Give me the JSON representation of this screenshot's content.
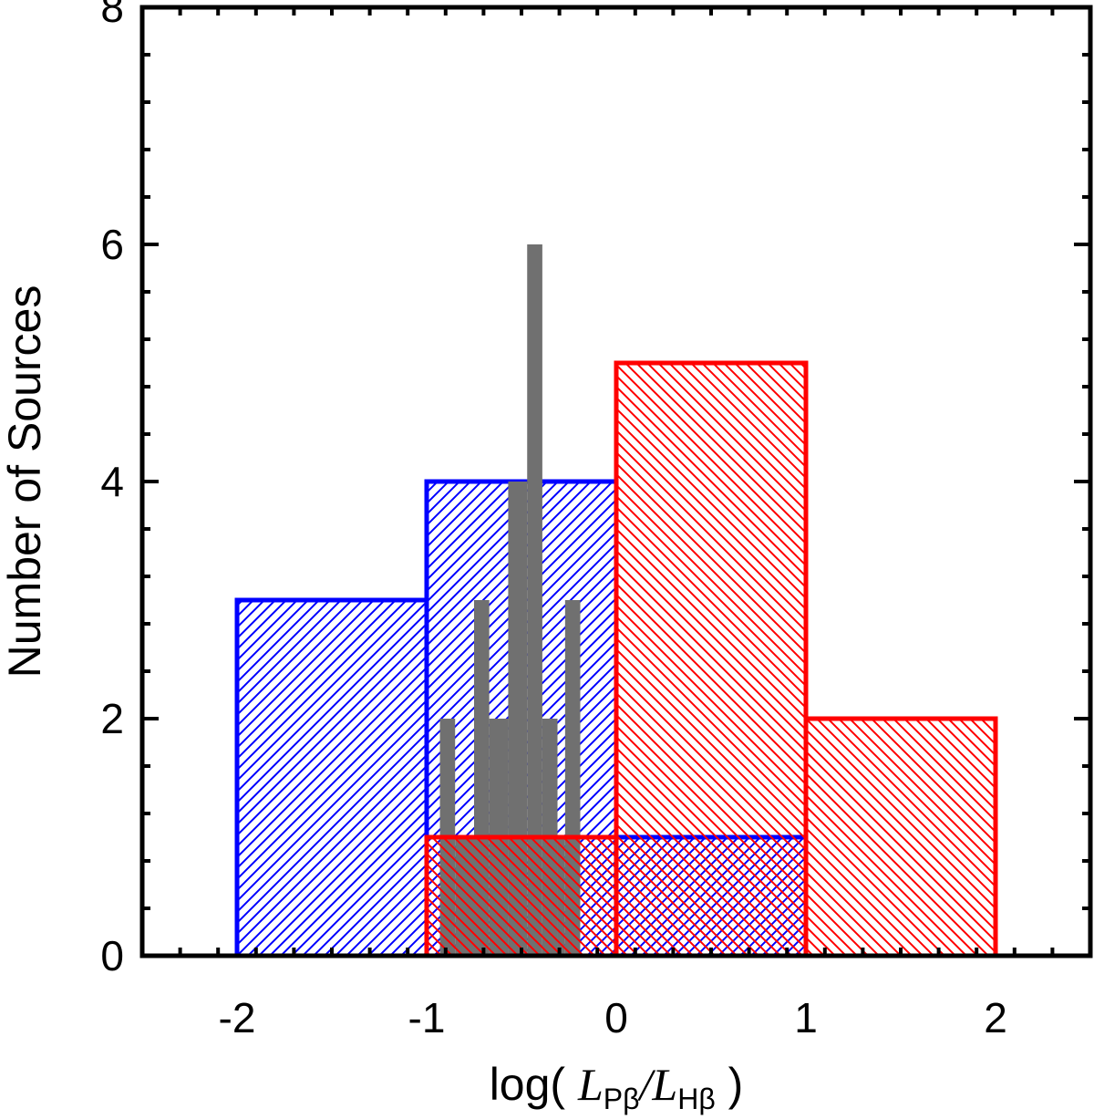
{
  "chart_data": {
    "type": "bar",
    "title": "",
    "ylabel": "Number of Sources",
    "xlabel": {
      "prefix": "log( ",
      "num_symbol": "L",
      "num_sub": "Pβ",
      "slash": "/",
      "den_symbol": "L",
      "den_sub": "Hβ",
      "suffix": " )"
    },
    "xlim": [
      -2.5,
      2.5
    ],
    "ylim": [
      0,
      8
    ],
    "x_ticks": [
      -2,
      -1,
      0,
      1,
      2
    ],
    "x_tick_labels": [
      "-2",
      "-1",
      "0",
      "1",
      "2"
    ],
    "y_ticks": [
      0,
      2,
      4,
      6,
      8
    ],
    "y_tick_labels": [
      "0",
      "2",
      "4",
      "6",
      "8"
    ],
    "grid": false,
    "series": [
      {
        "style": "hatch-forward",
        "color": "#0000ff",
        "bins": [
          {
            "x0": -2,
            "x1": -1,
            "value": 3
          },
          {
            "x0": -1,
            "x1": 0,
            "value": 4
          },
          {
            "x0": 0,
            "x1": 1,
            "value": 1
          }
        ]
      },
      {
        "style": "hatch-back",
        "color": "#ff0000",
        "bins": [
          {
            "x0": -1,
            "x1": 0,
            "value": 1
          },
          {
            "x0": 0,
            "x1": 1,
            "value": 5
          },
          {
            "x0": 1,
            "x1": 2,
            "value": 2
          }
        ]
      },
      {
        "style": "solid",
        "color": "#707070",
        "bins": [
          {
            "x0": -0.93,
            "x1": -0.85,
            "value": 2
          },
          {
            "x0": -0.85,
            "x1": -0.75,
            "value": 1
          },
          {
            "x0": -0.75,
            "x1": -0.67,
            "value": 3
          },
          {
            "x0": -0.67,
            "x1": -0.57,
            "value": 2
          },
          {
            "x0": -0.57,
            "x1": -0.47,
            "value": 4
          },
          {
            "x0": -0.47,
            "x1": -0.39,
            "value": 6
          },
          {
            "x0": -0.39,
            "x1": -0.31,
            "value": 2
          },
          {
            "x0": -0.31,
            "x1": -0.27,
            "value": 1
          },
          {
            "x0": -0.27,
            "x1": -0.19,
            "value": 3
          }
        ]
      }
    ]
  }
}
